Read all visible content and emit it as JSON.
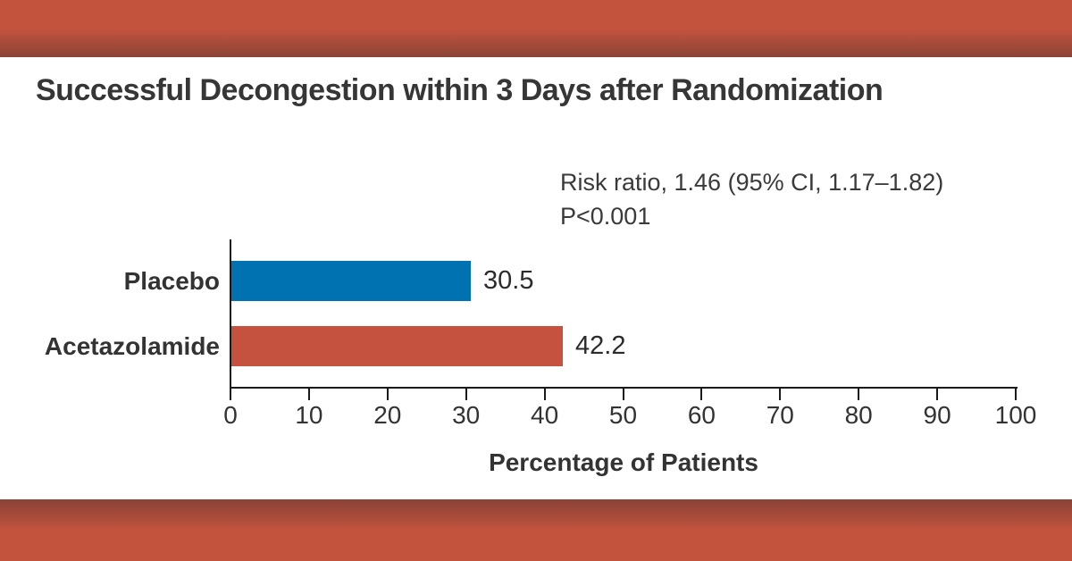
{
  "title": "Successful Decongestion within 3 Days after Randomization",
  "annotation": {
    "line1": "Risk ratio, 1.46 (95% CI, 1.17–1.82)",
    "line2": "P<0.001"
  },
  "colors": {
    "border_band_bright": "#c4533e",
    "border_band_dark": "#8a4337",
    "placebo_bar": "#0072b2",
    "acetazolamide_bar": "#c5523f",
    "axis": "#1a1a1a",
    "text": "#333333"
  },
  "chart_data": {
    "type": "bar",
    "orientation": "horizontal",
    "title": "Successful Decongestion within 3 Days after Randomization",
    "categories": [
      "Placebo",
      "Acetazolamide"
    ],
    "values": [
      30.5,
      42.2
    ],
    "value_labels": [
      "30.5",
      "42.2"
    ],
    "bar_colors": [
      "#0072b2",
      "#c5523f"
    ],
    "xlabel": "Percentage of Patients",
    "ylabel": "",
    "xlim": [
      0,
      100
    ],
    "xticks": [
      0,
      10,
      20,
      30,
      40,
      50,
      60,
      70,
      80,
      90,
      100
    ],
    "grid": false,
    "legend": "none",
    "annotations": [
      "Risk ratio, 1.46 (95% CI, 1.17–1.82)",
      "P<0.001"
    ]
  }
}
